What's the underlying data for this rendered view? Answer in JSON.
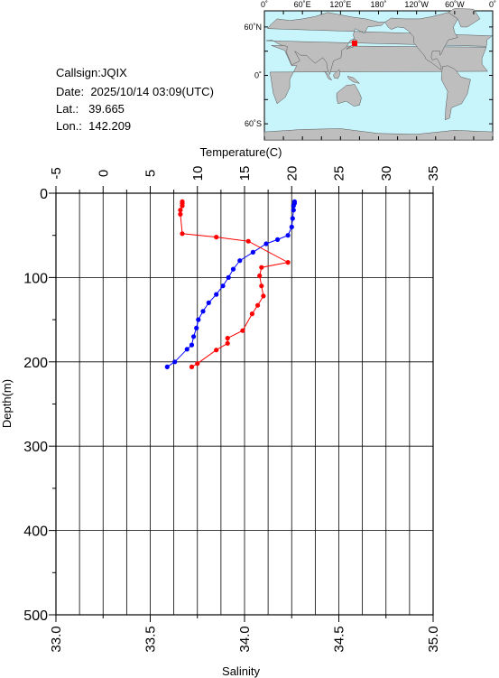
{
  "info": {
    "callsign": "Callsign:JQIX",
    "date_label": "Date:",
    "date_value": "2025/10/14 03:09(UTC)",
    "lat_label": "Lat.:",
    "lat_value": "39.665",
    "lon_label": "Lon.:",
    "lon_value": "142.209"
  },
  "map": {
    "top_ticks": [
      "0˚",
      "60˚E",
      "120˚E",
      "180˚",
      "120˚W",
      "60˚W",
      "0˚"
    ],
    "lat_ticks": [
      "60˚N",
      "0˚",
      "60˚S"
    ],
    "ocean_color": "#c8f4fb",
    "land_color": "#bebebe",
    "marker_color": "#ff0000",
    "marker_lon": 142.209,
    "marker_lat": 39.665
  },
  "chart_data": {
    "type": "line",
    "ylabel": "Depth(m)",
    "ylim": [
      0,
      500
    ],
    "y_ticks": [
      "0",
      "100",
      "200",
      "300",
      "400",
      "500"
    ],
    "top_axis": {
      "label": "Temperature(C)",
      "range": [
        -5,
        35
      ],
      "ticks": [
        "-5",
        "0",
        "5",
        "10",
        "15",
        "20",
        "25",
        "30",
        "35"
      ]
    },
    "bottom_axis": {
      "label": "Salinity",
      "range": [
        33.0,
        35.0
      ],
      "ticks": [
        "33.0",
        "33.5",
        "34.0",
        "34.5",
        "35.0"
      ]
    },
    "grid": true,
    "series": [
      {
        "axis": "top",
        "color": "#0000ff",
        "points": [
          [
            20.3,
            10
          ],
          [
            20.3,
            12
          ],
          [
            20.2,
            15
          ],
          [
            20.2,
            20
          ],
          [
            20.1,
            30
          ],
          [
            20.0,
            40
          ],
          [
            19.6,
            50
          ],
          [
            18.5,
            55
          ],
          [
            17.3,
            60
          ],
          [
            15.9,
            70
          ],
          [
            14.5,
            80
          ],
          [
            13.8,
            90
          ],
          [
            13.3,
            100
          ],
          [
            12.7,
            110
          ],
          [
            12.0,
            120
          ],
          [
            11.2,
            130
          ],
          [
            10.6,
            140
          ],
          [
            10.1,
            150
          ],
          [
            9.9,
            160
          ],
          [
            9.6,
            170
          ],
          [
            9.4,
            180
          ],
          [
            8.9,
            185
          ],
          [
            7.6,
            200
          ],
          [
            6.8,
            206
          ]
        ]
      },
      {
        "axis": "bottom",
        "color": "#ff0000",
        "points": [
          [
            33.67,
            10
          ],
          [
            33.67,
            12
          ],
          [
            33.67,
            15
          ],
          [
            33.66,
            20
          ],
          [
            33.66,
            25
          ],
          [
            33.67,
            48
          ],
          [
            33.85,
            52
          ],
          [
            34.02,
            57
          ],
          [
            34.23,
            82
          ],
          [
            34.09,
            88
          ],
          [
            34.08,
            98
          ],
          [
            34.09,
            110
          ],
          [
            34.1,
            122
          ],
          [
            34.07,
            133
          ],
          [
            34.04,
            143
          ],
          [
            33.99,
            163
          ],
          [
            33.91,
            172
          ],
          [
            33.91,
            178
          ],
          [
            33.85,
            186
          ],
          [
            33.75,
            202
          ],
          [
            33.72,
            206
          ]
        ]
      }
    ]
  }
}
